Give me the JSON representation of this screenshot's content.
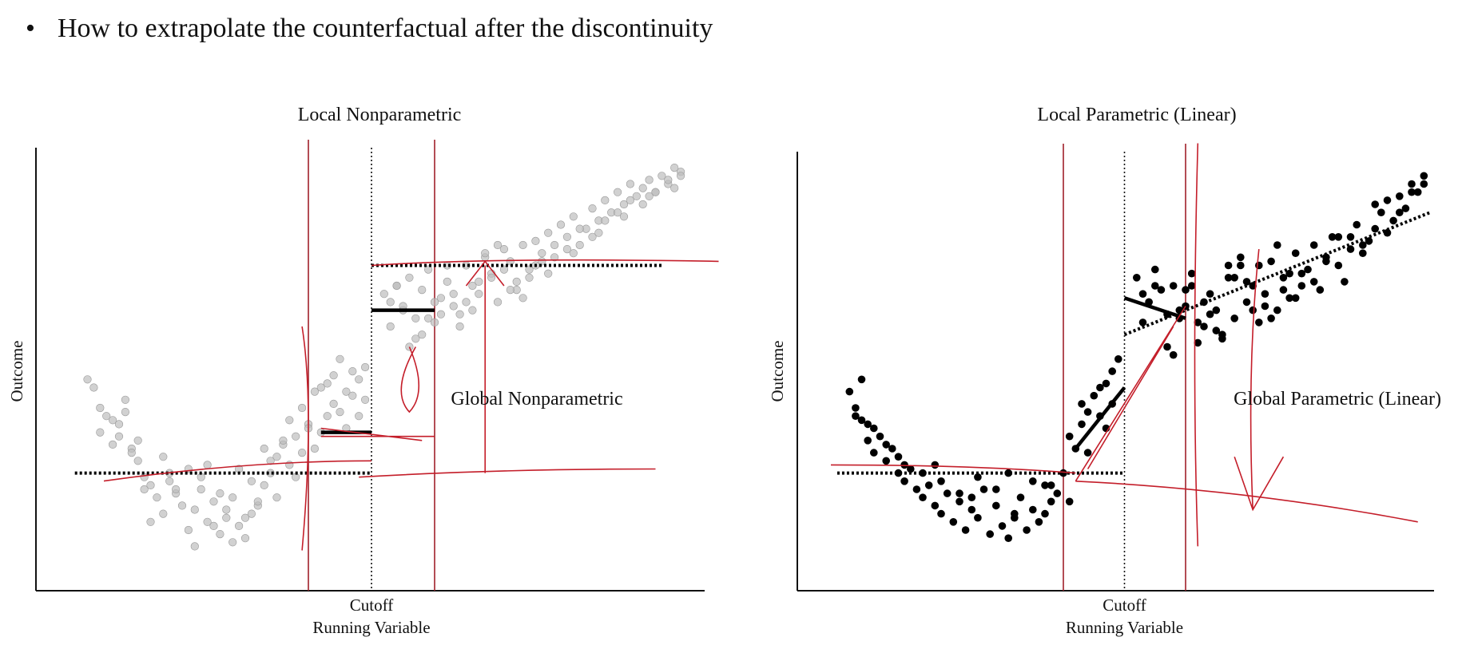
{
  "slide": {
    "bullet_symbol": "•",
    "bullet_text": "How to extrapolate the counterfactual after the discontinuity"
  },
  "chart_data": [
    {
      "type": "scatter",
      "title": "Local Nonparametric",
      "xlabel": "Running Variable",
      "ylabel": "Outcome",
      "x_tick_labels": [
        "Cutoff"
      ],
      "annotations": [
        "Global Nonparametric"
      ],
      "cutoff": 0.5,
      "xlim": [
        0,
        1
      ],
      "ylim": [
        0,
        1
      ],
      "grid": false,
      "legend": "none",
      "point_color": "#bdbdbd",
      "points": {
        "x": [
          0.05,
          0.06,
          0.07,
          0.08,
          0.09,
          0.1,
          0.11,
          0.12,
          0.07,
          0.09,
          0.1,
          0.12,
          0.13,
          0.14,
          0.15,
          0.16,
          0.17,
          0.18,
          0.19,
          0.2,
          0.21,
          0.22,
          0.23,
          0.24,
          0.25,
          0.26,
          0.27,
          0.28,
          0.29,
          0.3,
          0.31,
          0.32,
          0.33,
          0.34,
          0.35,
          0.36,
          0.37,
          0.38,
          0.39,
          0.4,
          0.41,
          0.42,
          0.43,
          0.44,
          0.45,
          0.46,
          0.47,
          0.48,
          0.49,
          0.15,
          0.18,
          0.22,
          0.26,
          0.3,
          0.34,
          0.38,
          0.45,
          0.47,
          0.49,
          0.44,
          0.42,
          0.24,
          0.28,
          0.17,
          0.21,
          0.32,
          0.36,
          0.4,
          0.13,
          0.19,
          0.27,
          0.31,
          0.35,
          0.23,
          0.29,
          0.33,
          0.37,
          0.39,
          0.41,
          0.43,
          0.46,
          0.48,
          0.14,
          0.25,
          0.11,
          0.52,
          0.53,
          0.54,
          0.55,
          0.56,
          0.57,
          0.58,
          0.59,
          0.6,
          0.61,
          0.62,
          0.63,
          0.64,
          0.65,
          0.66,
          0.67,
          0.68,
          0.69,
          0.7,
          0.71,
          0.72,
          0.73,
          0.74,
          0.75,
          0.76,
          0.77,
          0.78,
          0.79,
          0.8,
          0.81,
          0.82,
          0.83,
          0.84,
          0.85,
          0.86,
          0.87,
          0.88,
          0.89,
          0.9,
          0.91,
          0.92,
          0.93,
          0.94,
          0.95,
          0.96,
          0.97,
          0.98,
          0.99,
          0.53,
          0.57,
          0.61,
          0.65,
          0.69,
          0.73,
          0.77,
          0.81,
          0.85,
          0.89,
          0.93,
          0.97,
          0.55,
          0.59,
          0.63,
          0.67,
          0.71,
          0.75,
          0.79,
          0.83,
          0.87,
          0.91,
          0.95,
          0.99,
          0.54,
          0.58,
          0.62,
          0.66,
          0.7,
          0.74,
          0.78,
          0.82,
          0.86,
          0.9,
          0.94,
          0.98,
          0.56,
          0.6,
          0.64,
          0.68,
          0.72,
          0.76
        ],
        "y": [
          0.47,
          0.45,
          0.4,
          0.38,
          0.37,
          0.36,
          0.39,
          0.3,
          0.34,
          0.31,
          0.33,
          0.29,
          0.27,
          0.23,
          0.21,
          0.18,
          0.14,
          0.22,
          0.19,
          0.16,
          0.1,
          0.15,
          0.2,
          0.12,
          0.17,
          0.09,
          0.13,
          0.18,
          0.11,
          0.08,
          0.14,
          0.16,
          0.21,
          0.24,
          0.28,
          0.31,
          0.26,
          0.33,
          0.29,
          0.36,
          0.3,
          0.34,
          0.38,
          0.41,
          0.39,
          0.44,
          0.43,
          0.47,
          0.5,
          0.12,
          0.24,
          0.06,
          0.19,
          0.13,
          0.27,
          0.23,
          0.52,
          0.49,
          0.42,
          0.48,
          0.45,
          0.26,
          0.07,
          0.28,
          0.25,
          0.17,
          0.32,
          0.35,
          0.32,
          0.2,
          0.15,
          0.22,
          0.18,
          0.23,
          0.25,
          0.3,
          0.37,
          0.4,
          0.44,
          0.46,
          0.35,
          0.38,
          0.2,
          0.11,
          0.42,
          0.68,
          0.66,
          0.7,
          0.64,
          0.72,
          0.62,
          0.69,
          0.74,
          0.61,
          0.67,
          0.71,
          0.65,
          0.63,
          0.75,
          0.7,
          0.68,
          0.77,
          0.73,
          0.66,
          0.79,
          0.76,
          0.71,
          0.8,
          0.74,
          0.81,
          0.78,
          0.83,
          0.77,
          0.85,
          0.82,
          0.87,
          0.8,
          0.84,
          0.89,
          0.86,
          0.91,
          0.88,
          0.93,
          0.9,
          0.95,
          0.92,
          0.94,
          0.96,
          0.93,
          0.97,
          0.95,
          0.99,
          0.98,
          0.6,
          0.57,
          0.63,
          0.66,
          0.72,
          0.69,
          0.76,
          0.79,
          0.82,
          0.88,
          0.9,
          0.96,
          0.65,
          0.62,
          0.68,
          0.71,
          0.74,
          0.72,
          0.8,
          0.84,
          0.86,
          0.91,
          0.93,
          0.97,
          0.7,
          0.58,
          0.75,
          0.64,
          0.8,
          0.67,
          0.73,
          0.78,
          0.83,
          0.87,
          0.92,
          0.94,
          0.55,
          0.66,
          0.6,
          0.78,
          0.69,
          0.75
        ]
      },
      "fit_lines": [
        {
          "name": "left-counterfactual-dotted",
          "style": "dotted",
          "x": [
            0.03,
            0.5
          ],
          "y": [
            0.24,
            0.24
          ]
        },
        {
          "name": "right-level-dotted",
          "style": "dotted",
          "x": [
            0.5,
            0.96
          ],
          "y": [
            0.75,
            0.75
          ]
        },
        {
          "name": "left-local-mean",
          "style": "solid",
          "x": [
            0.42,
            0.5
          ],
          "y": [
            0.34,
            0.34
          ]
        },
        {
          "name": "right-local-mean",
          "style": "solid",
          "x": [
            0.5,
            0.6
          ],
          "y": [
            0.64,
            0.64
          ]
        }
      ],
      "bandwidth_lines_x": [
        0.4,
        0.6
      ]
    },
    {
      "type": "scatter",
      "title": "Local Parametric (Linear)",
      "xlabel": "Running Variable",
      "ylabel": "Outcome",
      "x_tick_labels": [
        "Cutoff"
      ],
      "annotations": [
        "Global Parametric (Linear)"
      ],
      "cutoff": 0.5,
      "xlim": [
        0,
        1
      ],
      "ylim": [
        0,
        1
      ],
      "grid": false,
      "legend": "none",
      "point_color": "#000000",
      "points": {
        "x": [
          0.05,
          0.06,
          0.07,
          0.08,
          0.09,
          0.1,
          0.11,
          0.12,
          0.13,
          0.14,
          0.15,
          0.16,
          0.17,
          0.18,
          0.19,
          0.2,
          0.21,
          0.22,
          0.23,
          0.24,
          0.25,
          0.26,
          0.27,
          0.28,
          0.29,
          0.3,
          0.31,
          0.32,
          0.33,
          0.34,
          0.35,
          0.36,
          0.37,
          0.38,
          0.39,
          0.4,
          0.41,
          0.42,
          0.43,
          0.44,
          0.45,
          0.46,
          0.47,
          0.48,
          0.49,
          0.06,
          0.08,
          0.11,
          0.14,
          0.17,
          0.2,
          0.23,
          0.26,
          0.29,
          0.32,
          0.35,
          0.38,
          0.41,
          0.44,
          0.47,
          0.09,
          0.13,
          0.19,
          0.25,
          0.31,
          0.37,
          0.43,
          0.46,
          0.48,
          0.07,
          0.52,
          0.53,
          0.54,
          0.55,
          0.56,
          0.57,
          0.58,
          0.59,
          0.6,
          0.61,
          0.62,
          0.63,
          0.64,
          0.65,
          0.66,
          0.67,
          0.68,
          0.69,
          0.7,
          0.71,
          0.72,
          0.73,
          0.74,
          0.75,
          0.76,
          0.77,
          0.78,
          0.79,
          0.8,
          0.81,
          0.82,
          0.83,
          0.84,
          0.85,
          0.86,
          0.87,
          0.88,
          0.89,
          0.9,
          0.91,
          0.92,
          0.93,
          0.94,
          0.95,
          0.96,
          0.97,
          0.98,
          0.99,
          0.53,
          0.57,
          0.61,
          0.65,
          0.69,
          0.73,
          0.77,
          0.81,
          0.85,
          0.89,
          0.93,
          0.97,
          0.55,
          0.59,
          0.63,
          0.67,
          0.71,
          0.75,
          0.79,
          0.83,
          0.87,
          0.91,
          0.95,
          0.99,
          0.54,
          0.58,
          0.62,
          0.66,
          0.7,
          0.74,
          0.78,
          0.6,
          0.64,
          0.68,
          0.72,
          0.76
        ],
        "y": [
          0.44,
          0.4,
          0.37,
          0.36,
          0.35,
          0.33,
          0.31,
          0.3,
          0.28,
          0.22,
          0.25,
          0.2,
          0.18,
          0.21,
          0.16,
          0.14,
          0.19,
          0.12,
          0.17,
          0.1,
          0.15,
          0.13,
          0.2,
          0.09,
          0.16,
          0.11,
          0.08,
          0.14,
          0.18,
          0.1,
          0.15,
          0.12,
          0.21,
          0.17,
          0.19,
          0.24,
          0.33,
          0.3,
          0.36,
          0.39,
          0.43,
          0.38,
          0.46,
          0.49,
          0.52,
          0.38,
          0.32,
          0.27,
          0.26,
          0.24,
          0.22,
          0.19,
          0.23,
          0.2,
          0.13,
          0.22,
          0.21,
          0.17,
          0.29,
          0.35,
          0.29,
          0.24,
          0.26,
          0.18,
          0.24,
          0.14,
          0.41,
          0.45,
          0.41,
          0.47,
          0.72,
          0.68,
          0.66,
          0.74,
          0.69,
          0.63,
          0.7,
          0.62,
          0.65,
          0.73,
          0.56,
          0.6,
          0.68,
          0.64,
          0.58,
          0.72,
          0.62,
          0.75,
          0.66,
          0.7,
          0.61,
          0.68,
          0.76,
          0.64,
          0.72,
          0.67,
          0.78,
          0.7,
          0.74,
          0.8,
          0.69,
          0.77,
          0.82,
          0.75,
          0.71,
          0.79,
          0.85,
          0.78,
          0.81,
          0.84,
          0.88,
          0.83,
          0.86,
          0.92,
          0.89,
          0.95,
          0.93,
          0.97,
          0.61,
          0.55,
          0.7,
          0.59,
          0.77,
          0.65,
          0.73,
          0.71,
          0.82,
          0.8,
          0.91,
          0.93,
          0.7,
          0.64,
          0.66,
          0.75,
          0.64,
          0.8,
          0.73,
          0.76,
          0.82,
          0.9,
          0.88,
          0.95,
          0.66,
          0.53,
          0.61,
          0.57,
          0.71,
          0.62,
          0.67,
          0.69,
          0.63,
          0.72,
          0.75,
          0.69
        ]
      },
      "fit_lines": [
        {
          "name": "left-counterfactual-dotted",
          "style": "dotted",
          "x": [
            0.03,
            0.5
          ],
          "y": [
            0.24,
            0.24
          ]
        },
        {
          "name": "right-fit-dotted",
          "style": "dotted",
          "x": [
            0.5,
            1.0
          ],
          "y": [
            0.58,
            0.88
          ]
        },
        {
          "name": "left-local-fit",
          "style": "solid",
          "x": [
            0.42,
            0.5
          ],
          "y": [
            0.3,
            0.45
          ]
        },
        {
          "name": "right-local-fit",
          "style": "solid",
          "x": [
            0.5,
            0.6
          ],
          "y": [
            0.67,
            0.62
          ]
        }
      ],
      "bandwidth_lines_x": [
        0.4,
        0.6
      ]
    }
  ]
}
